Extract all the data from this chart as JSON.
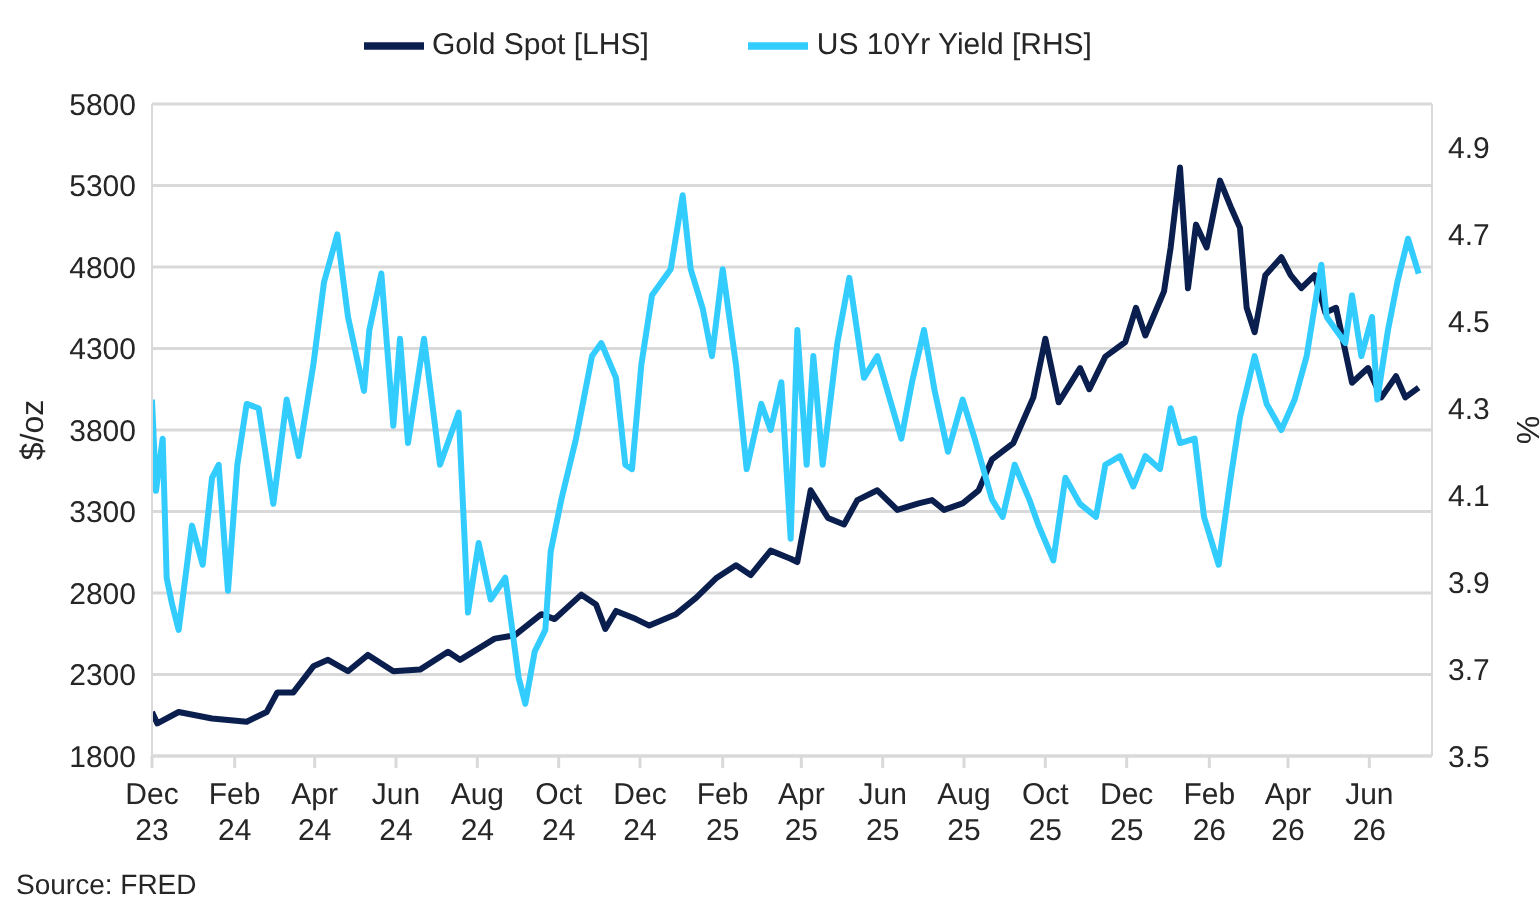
{
  "chart_data": {
    "type": "line",
    "ylabel": "$/oz",
    "y2label": "%",
    "annotations": [
      "Source: FRED"
    ],
    "legend": "top",
    "grid": "y",
    "marker": "none",
    "line_style": "solid",
    "xlim": [
      "2023-12-01",
      "2026-07-18"
    ],
    "xticks": [
      {
        "value": "2023-12-01",
        "label": "Dec 23"
      },
      {
        "value": "2024-02-01",
        "label": "Feb 24"
      },
      {
        "value": "2024-04-01",
        "label": "Apr 24"
      },
      {
        "value": "2024-06-01",
        "label": "Jun 24"
      },
      {
        "value": "2024-08-01",
        "label": "Aug 24"
      },
      {
        "value": "2024-10-01",
        "label": "Oct 24"
      },
      {
        "value": "2024-12-01",
        "label": "Dec 24"
      },
      {
        "value": "2025-02-01",
        "label": "Feb 25"
      },
      {
        "value": "2025-04-01",
        "label": "Apr 25"
      },
      {
        "value": "2025-06-01",
        "label": "Jun 25"
      },
      {
        "value": "2025-08-01",
        "label": "Aug 25"
      },
      {
        "value": "2025-10-01",
        "label": "Oct 25"
      },
      {
        "value": "2025-12-01",
        "label": "Dec 25"
      },
      {
        "value": "2026-02-01",
        "label": "Feb 26"
      },
      {
        "value": "2026-04-01",
        "label": "Apr 26"
      },
      {
        "value": "2026-06-01",
        "label": "Jun 26"
      }
    ],
    "ylim": [
      1800,
      5800
    ],
    "yticks": [
      1800,
      2300,
      2800,
      3300,
      3800,
      4300,
      4800,
      5300,
      5800
    ],
    "y2lim": [
      3.5,
      5.0
    ],
    "y2ticks": [
      3.5,
      3.7,
      3.9,
      4.1,
      4.3,
      4.5,
      4.7,
      4.9
    ],
    "series": [
      {
        "name": "Gold Spot [LHS]",
        "color": "#0b1f4f",
        "x": [
          "2023-12-01",
          "2023-12-05",
          "2023-12-21",
          "2024-01-15",
          "2024-02-10",
          "2024-02-25",
          "2024-03-04",
          "2024-03-16",
          "2024-03-31",
          "2024-04-11",
          "2024-04-26",
          "2024-05-11",
          "2024-05-30",
          "2024-06-19",
          "2024-07-10",
          "2024-07-19",
          "2024-08-14",
          "2024-08-29",
          "2024-09-18",
          "2024-09-28",
          "2024-10-18",
          "2024-10-29",
          "2024-11-05",
          "2024-11-13",
          "2024-11-28",
          "2024-12-08",
          "2024-12-28",
          "2025-01-12",
          "2025-01-27",
          "2025-02-11",
          "2025-02-22",
          "2025-03-09",
          "2025-03-24",
          "2025-03-29",
          "2025-04-08",
          "2025-04-21",
          "2025-05-03",
          "2025-05-13",
          "2025-05-28",
          "2025-06-12",
          "2025-06-28",
          "2025-07-08",
          "2025-07-17",
          "2025-07-31",
          "2025-08-12",
          "2025-08-22",
          "2025-09-07",
          "2025-09-22",
          "2025-10-01",
          "2025-10-11",
          "2025-10-27",
          "2025-11-03",
          "2025-11-15",
          "2025-11-30",
          "2025-12-08",
          "2025-12-15",
          "2025-12-29",
          "2026-01-03",
          "2026-01-10",
          "2026-01-16",
          "2026-01-22",
          "2026-01-30",
          "2026-02-09",
          "2026-02-17",
          "2026-02-24",
          "2026-03-01",
          "2026-03-07",
          "2026-03-15",
          "2026-03-27",
          "2026-04-03",
          "2026-04-11",
          "2026-04-21",
          "2026-04-29",
          "2026-05-07",
          "2026-05-19",
          "2026-05-31",
          "2026-06-10",
          "2026-06-21",
          "2026-06-28",
          "2026-07-08"
        ],
        "values": [
          2070,
          2000,
          2070,
          2030,
          2010,
          2070,
          2190,
          2190,
          2350,
          2390,
          2320,
          2420,
          2320,
          2330,
          2440,
          2390,
          2520,
          2540,
          2670,
          2640,
          2790,
          2730,
          2580,
          2690,
          2640,
          2600,
          2670,
          2770,
          2890,
          2970,
          2910,
          3060,
          3010,
          2990,
          3430,
          3260,
          3220,
          3370,
          3430,
          3310,
          3350,
          3370,
          3310,
          3350,
          3430,
          3620,
          3720,
          4000,
          4360,
          3970,
          4180,
          4050,
          4250,
          4340,
          4550,
          4380,
          4650,
          4920,
          5410,
          4670,
          5060,
          4920,
          5330,
          5170,
          5040,
          4550,
          4400,
          4750,
          4860,
          4750,
          4670,
          4750,
          4520,
          4550,
          4090,
          4180,
          4000,
          4130,
          4000,
          4060
        ]
      },
      {
        "name": "US 10Yr Yield [RHS]",
        "color": "#33ccff",
        "axis": "y2",
        "x": [
          "2023-12-01",
          "2023-12-04",
          "2023-12-09",
          "2023-12-12",
          "2023-12-16",
          "2023-12-21",
          "2023-12-31",
          "2024-01-08",
          "2024-01-15",
          "2024-01-20",
          "2024-01-27",
          "2024-02-03",
          "2024-02-10",
          "2024-02-19",
          "2024-03-01",
          "2024-03-11",
          "2024-03-20",
          "2024-03-31",
          "2024-04-08",
          "2024-04-18",
          "2024-04-26",
          "2024-05-08",
          "2024-05-12",
          "2024-05-21",
          "2024-05-30",
          "2024-06-04",
          "2024-06-10",
          "2024-06-22",
          "2024-07-04",
          "2024-07-18",
          "2024-07-25",
          "2024-08-02",
          "2024-08-11",
          "2024-08-22",
          "2024-09-01",
          "2024-09-06",
          "2024-09-13",
          "2024-09-21",
          "2024-09-25",
          "2024-10-03",
          "2024-10-14",
          "2024-10-26",
          "2024-11-02",
          "2024-11-13",
          "2024-11-20",
          "2024-11-25",
          "2024-12-02",
          "2024-12-10",
          "2024-12-24",
          "2025-01-02",
          "2025-01-08",
          "2025-01-17",
          "2025-01-24",
          "2025-02-01",
          "2025-02-11",
          "2025-02-19",
          "2025-03-02",
          "2025-03-09",
          "2025-03-17",
          "2025-03-24",
          "2025-03-29",
          "2025-04-05",
          "2025-04-10",
          "2025-04-17",
          "2025-04-28",
          "2025-05-07",
          "2025-05-18",
          "2025-05-28",
          "2025-06-15",
          "2025-06-23",
          "2025-07-02",
          "2025-07-10",
          "2025-07-20",
          "2025-07-31",
          "2025-08-09",
          "2025-08-22",
          "2025-08-30",
          "2025-09-08",
          "2025-09-19",
          "2025-09-26",
          "2025-10-07",
          "2025-10-16",
          "2025-10-27",
          "2025-11-08",
          "2025-11-15",
          "2025-11-26",
          "2025-12-06",
          "2025-12-15",
          "2025-12-26",
          "2026-01-03",
          "2026-01-10",
          "2026-01-21",
          "2026-01-28",
          "2026-02-08",
          "2026-02-17",
          "2026-02-24",
          "2026-03-07",
          "2026-03-16",
          "2026-03-27",
          "2026-04-06",
          "2026-04-15",
          "2026-04-26",
          "2026-04-30",
          "2026-05-14",
          "2026-05-19",
          "2026-05-26",
          "2026-06-03",
          "2026-06-07",
          "2026-06-15",
          "2026-06-22",
          "2026-06-30",
          "2026-07-08"
        ],
        "values": [
          4.32,
          4.11,
          4.23,
          3.91,
          3.85,
          3.79,
          4.03,
          3.94,
          4.14,
          4.17,
          3.88,
          4.17,
          4.31,
          4.3,
          4.08,
          4.32,
          4.19,
          4.4,
          4.59,
          4.7,
          4.51,
          4.34,
          4.48,
          4.61,
          4.26,
          4.46,
          4.22,
          4.46,
          4.17,
          4.29,
          3.83,
          3.99,
          3.86,
          3.91,
          3.68,
          3.62,
          3.74,
          3.79,
          3.97,
          4.09,
          4.23,
          4.42,
          4.45,
          4.37,
          4.17,
          4.16,
          4.4,
          4.56,
          4.62,
          4.79,
          4.62,
          4.53,
          4.42,
          4.62,
          4.4,
          4.16,
          4.31,
          4.25,
          4.36,
          4.0,
          4.48,
          4.17,
          4.42,
          4.17,
          4.45,
          4.6,
          4.37,
          4.42,
          4.23,
          4.36,
          4.48,
          4.34,
          4.2,
          4.32,
          4.23,
          4.09,
          4.05,
          4.17,
          4.09,
          4.03,
          3.95,
          4.14,
          4.08,
          4.05,
          4.17,
          4.19,
          4.12,
          4.19,
          4.16,
          4.3,
          4.22,
          4.23,
          4.05,
          3.94,
          4.14,
          4.28,
          4.42,
          4.31,
          4.25,
          4.32,
          4.42,
          4.63,
          4.51,
          4.45,
          4.56,
          4.42,
          4.51,
          4.32,
          4.48,
          4.59,
          4.69,
          4.61
        ]
      }
    ]
  }
}
